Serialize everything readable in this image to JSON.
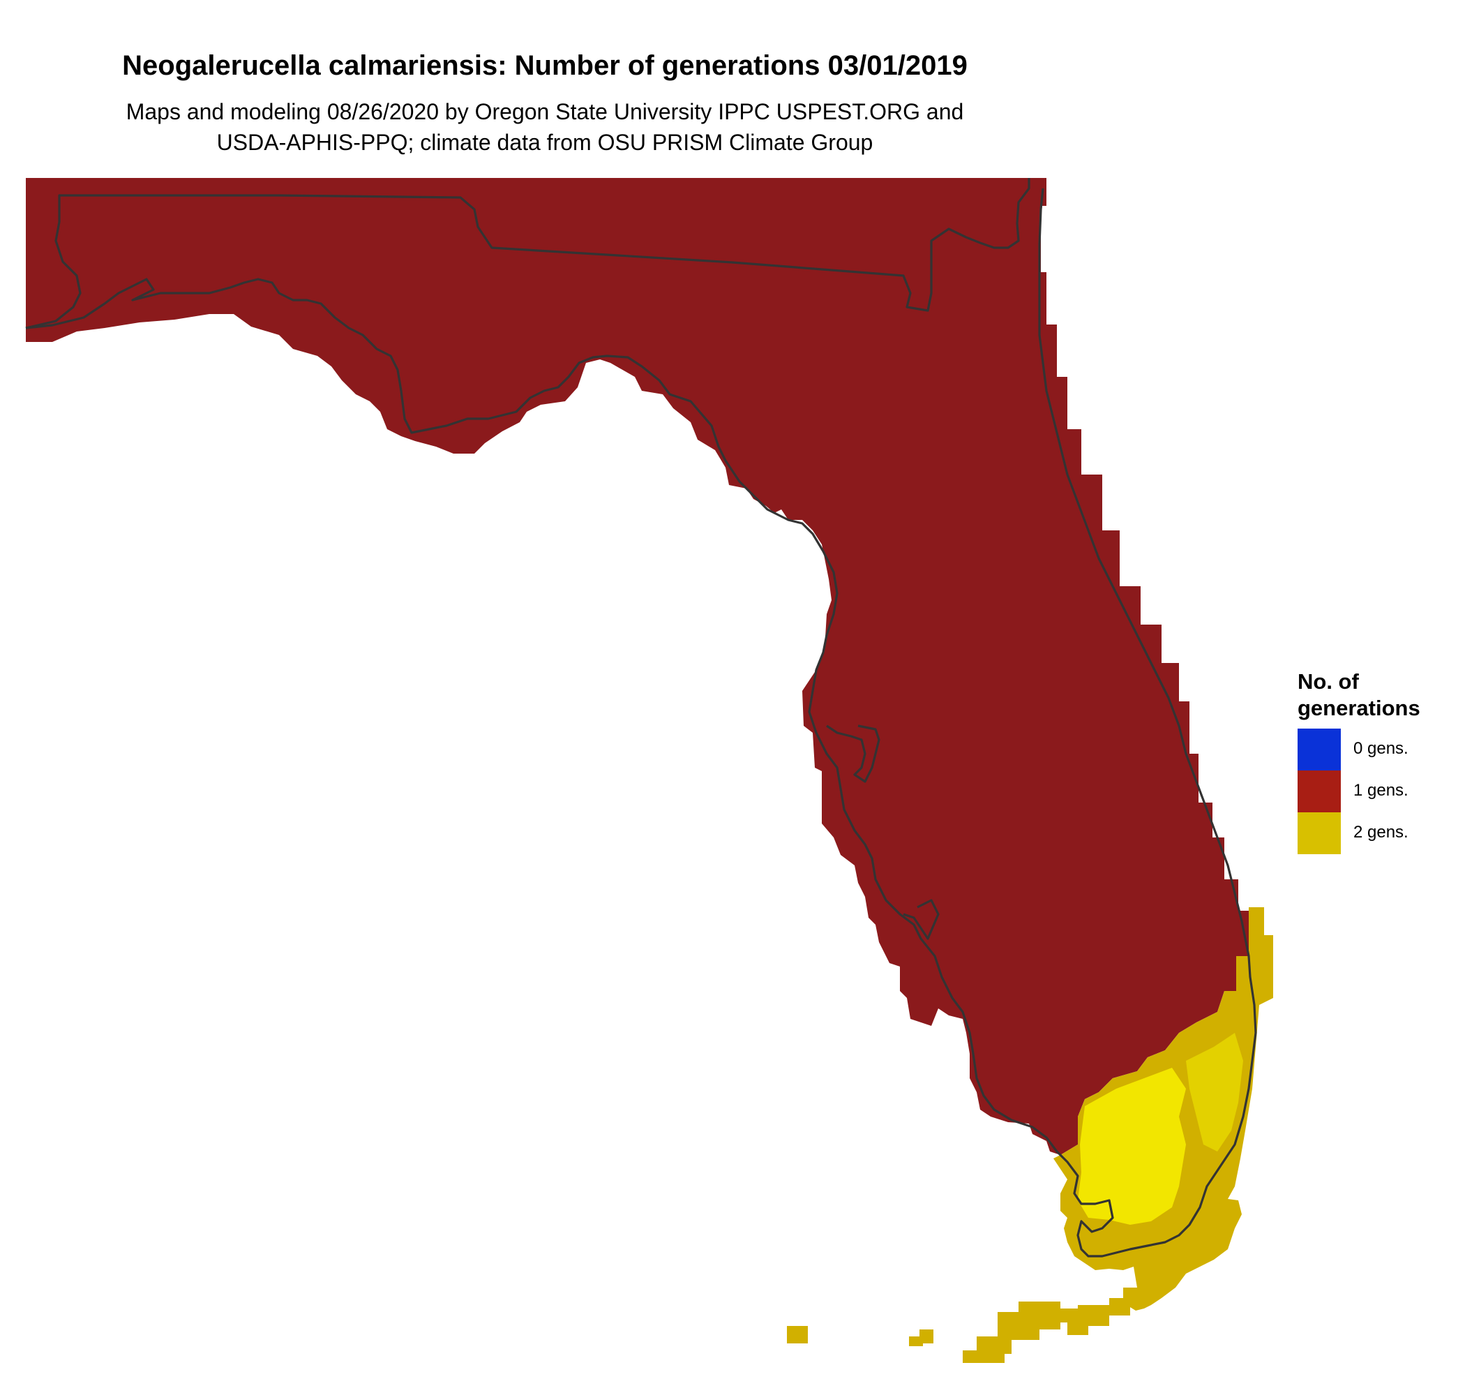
{
  "map": {
    "title": "Neogalerucella calmariensis: Number of generations 03/01/2019",
    "subtitle_line1": "Maps and modeling 08/26/2020 by Oregon State University IPPC USPEST.ORG and",
    "subtitle_line2": "USDA-APHIS-PPQ; climate data from OSU PRISM Climate Group",
    "region": "Florida",
    "colors": {
      "gen0": "#0a32d8",
      "gen1": "#8b1a1c",
      "gen2_light": "#f2e600",
      "gen2_mid": "#e3d100",
      "gen2_dark": "#d1b000",
      "outline": "#333333",
      "background": "#ffffff"
    }
  },
  "legend": {
    "title_line1": "No. of",
    "title_line2": "generations",
    "items": [
      {
        "label": "0 gens.",
        "color": "#0a32d8"
      },
      {
        "label": "1 gens.",
        "color": "#a81e14"
      },
      {
        "label": "2 gens.",
        "color": "#d8c000"
      }
    ]
  }
}
